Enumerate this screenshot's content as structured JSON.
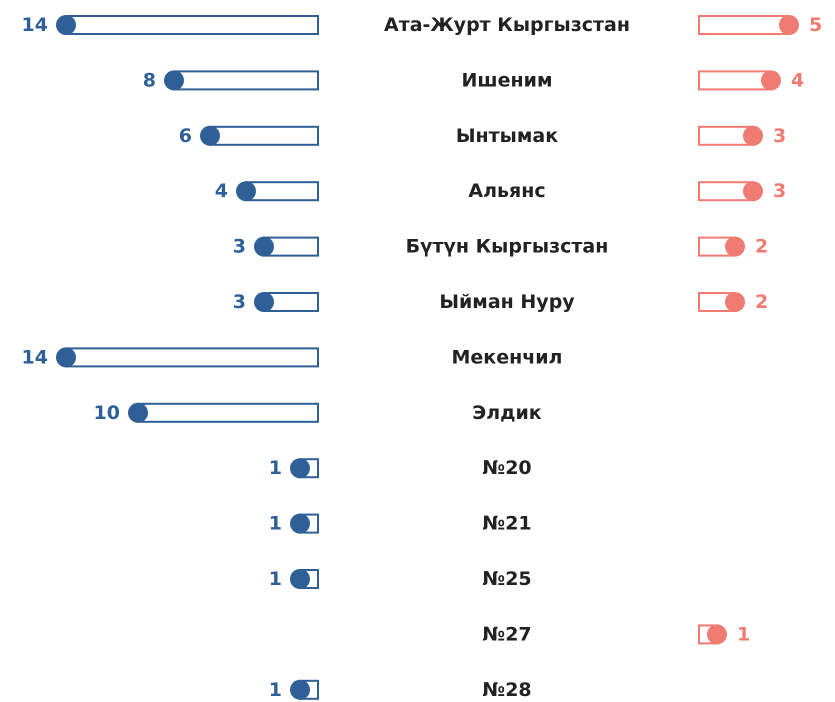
{
  "chart_data": {
    "type": "bar",
    "categories": [
      "Ата-Журт Кыргызстан",
      "Ишеним",
      "Ынтымак",
      "Альянс",
      "Бүтүн Кыргызстан",
      "Ыйман Нуру",
      "Мекенчил",
      "Элдик",
      "№20",
      "№21",
      "№25",
      "№27",
      "№28"
    ],
    "series": [
      {
        "color": "#2f5f97",
        "values": [
          14,
          8,
          6,
          4,
          3,
          3,
          14,
          10,
          1,
          1,
          1,
          null,
          1
        ]
      },
      {
        "color": "#f07b72",
        "values": [
          5,
          4,
          3,
          3,
          2,
          2,
          null,
          null,
          null,
          null,
          null,
          1,
          null
        ]
      }
    ]
  }
}
